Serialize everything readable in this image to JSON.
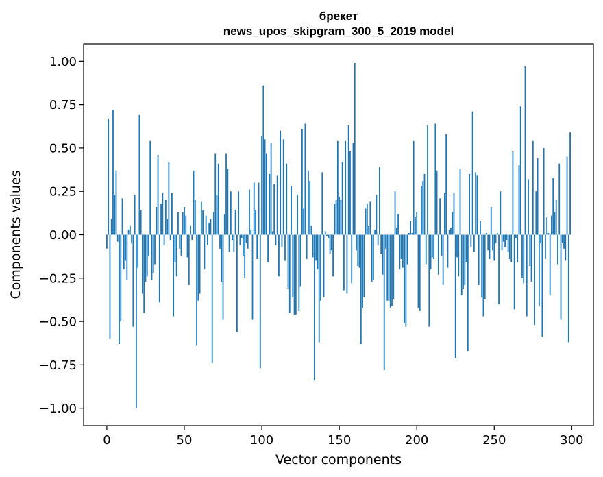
{
  "chart_data": {
    "type": "bar",
    "title_line1": "брекет",
    "title_line2": "news_upos_skipgram_300_5_2019 model",
    "xlabel": "Vector components",
    "ylabel": "Components values",
    "xlim": [
      -15,
      314
    ],
    "ylim": [
      -1.1,
      1.1
    ],
    "xticks": [
      0,
      50,
      100,
      150,
      200,
      250,
      300
    ],
    "xtick_labels": [
      "0",
      "50",
      "100",
      "150",
      "200",
      "250",
      "300"
    ],
    "yticks": [
      1.0,
      0.75,
      0.5,
      0.25,
      0.0,
      -0.25,
      -0.5,
      -0.75,
      -1.0
    ],
    "ytick_labels": [
      "1.00",
      "0.75",
      "0.50",
      "0.25",
      "0.00",
      "−0.25",
      "−0.50",
      "−0.75",
      "−1.00"
    ],
    "bar_color": "#1f77b4",
    "values": [
      -0.08,
      0.67,
      -0.6,
      0.09,
      0.72,
      0.23,
      0.37,
      -0.04,
      -0.63,
      -0.5,
      0.21,
      -0.2,
      -0.15,
      -0.26,
      0.03,
      0.05,
      -0.05,
      -0.53,
      0.23,
      -1.0,
      -0.19,
      0.69,
      0.14,
      -0.34,
      -0.45,
      -0.27,
      -0.24,
      -0.12,
      0.54,
      -0.26,
      -0.22,
      -0.17,
      0.16,
      0.46,
      -0.39,
      0.18,
      0.24,
      -0.06,
      0.2,
      0.09,
      0.42,
      -0.03,
      0.24,
      -0.47,
      -0.16,
      -0.24,
      0.13,
      -0.08,
      -0.12,
      0.13,
      0.16,
      0.11,
      -0.13,
      -0.29,
      0.05,
      -0.03,
      0.37,
      0.2,
      -0.64,
      -0.38,
      -0.34,
      0.19,
      0.14,
      -0.2,
      0.11,
      -0.06,
      0.07,
      0.09,
      -0.74,
      0.13,
      0.47,
      0.23,
      0.41,
      -0.08,
      -0.27,
      -0.49,
      0.12,
      0.47,
      0.38,
      -0.1,
      0.25,
      -0.03,
      -0.1,
      0.14,
      -0.56,
      0.25,
      -0.06,
      -0.02,
      -0.12,
      -0.25,
      -0.05,
      -0.08,
      0.26,
      0.03,
      -0.49,
      0.3,
      0.14,
      -0.14,
      0.3,
      -0.77,
      0.57,
      0.86,
      0.55,
      0.47,
      -0.16,
      0.35,
      0.53,
      0.02,
      0.29,
      -0.06,
      0.34,
      -0.24,
      0.6,
      -0.07,
      0.55,
      -0.15,
      0.41,
      -0.31,
      -0.45,
      0.28,
      -0.36,
      -0.46,
      -0.46,
      0.23,
      -0.44,
      -0.3,
      0.61,
      0.15,
      0.64,
      -0.14,
      0.37,
      0.31,
      0.05,
      -0.13,
      -0.84,
      -0.15,
      -0.2,
      -0.62,
      -0.38,
      0.36,
      -0.36,
      0.02,
      -0.01,
      -0.02,
      -0.11,
      -0.09,
      -0.24,
      0.18,
      0.2,
      0.54,
      0.22,
      0.2,
      0.42,
      -0.32,
      0.54,
      -0.34,
      0.63,
      0.48,
      -0.28,
      0.53,
      0.99,
      -0.09,
      -0.18,
      -0.19,
      -0.63,
      -0.42,
      -0.36,
      0.15,
      0.18,
      0.05,
      0.19,
      -0.27,
      -0.26,
      0.03,
      0.23,
      -0.06,
      0.39,
      -0.11,
      -0.23,
      -0.78,
      -0.08,
      -0.38,
      -0.38,
      -0.42,
      -0.41,
      -0.37,
      0.25,
      0.04,
      0.12,
      -0.2,
      -0.14,
      -0.19,
      -0.51,
      -0.53,
      -0.17,
      0.01,
      0.08,
      0.01,
      0.54,
      0.1,
      0.13,
      -0.42,
      -0.44,
      0.28,
      0.31,
      0.35,
      -0.17,
      0.63,
      -0.53,
      -0.2,
      -0.13,
      -0.14,
      0.64,
      0.37,
      -0.23,
      0.21,
      -0.12,
      -0.29,
      0.24,
      0.58,
      -0.19,
      0.03,
      0.04,
      0.13,
      0.24,
      -0.71,
      -0.13,
      -0.24,
      0.38,
      -0.35,
      -0.31,
      -0.29,
      -0.16,
      -0.67,
      0.35,
      -0.07,
      0.71,
      -0.1,
      0.36,
      0.34,
      -0.29,
      0.08,
      -0.36,
      -0.47,
      -0.37,
      0.01,
      -0.09,
      -0.14,
      0.16,
      -0.09,
      -0.15,
      -0.05,
      0.01,
      -0.4,
      0.25,
      -0.09,
      -0.04,
      -0.07,
      -0.03,
      -0.1,
      -0.14,
      -0.16,
      0.48,
      -0.43,
      -0.02,
      -0.16,
      0.4,
      0.74,
      -0.25,
      -0.28,
      0.97,
      -0.47,
      0.32,
      -0.18,
      -0.27,
      0.54,
      -0.52,
      0.25,
      0.44,
      -0.41,
      -0.05,
      -0.59,
      0.5,
      -0.14,
      0.1,
      0.01,
      -0.35,
      0.11,
      0.33,
      0.13,
      0.2,
      -0.17,
      0.41,
      -0.49,
      -0.05,
      -0.08,
      -0.15,
      0.45,
      -0.62,
      0.59
    ]
  }
}
